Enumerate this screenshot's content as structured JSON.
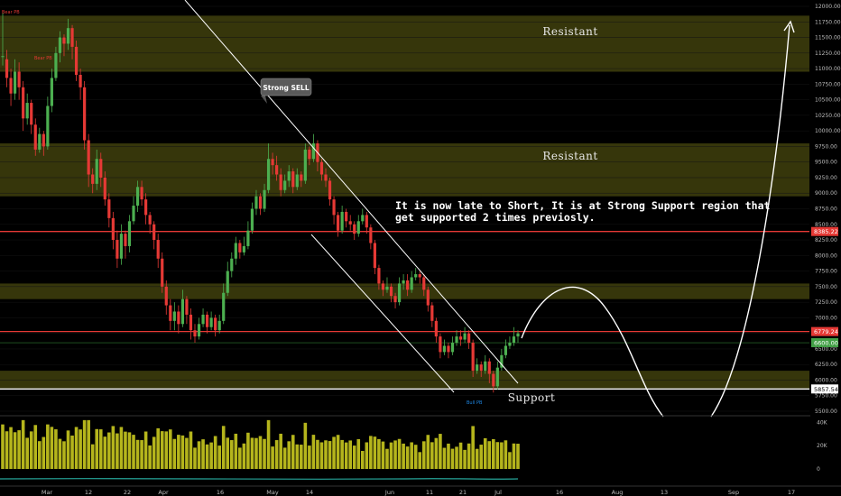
{
  "chart_data": {
    "type": "candlestick",
    "price_axis": {
      "ylim": [
        5500,
        12250
      ],
      "ticks": [
        12000,
        11750,
        11500,
        11250,
        11000,
        10750,
        10500,
        10250,
        10000,
        9750,
        9500,
        9250,
        9000,
        8750,
        8500,
        8250,
        8000,
        7750,
        7500,
        7250,
        7000,
        6750,
        6500,
        6250,
        6000,
        5750,
        5500
      ],
      "tick_labels": [
        "12000.00",
        "11750.00",
        "11500.00",
        "11250.00",
        "11000.00",
        "10750.00",
        "10500.00",
        "10250.00",
        "10000.00",
        "9750.00",
        "9500.00",
        "9250.00",
        "9000.00",
        "8750.00",
        "8500.00",
        "8250.00",
        "8000.00",
        "7750.00",
        "7500.00",
        "7250.00",
        "7000.00",
        "6750.00",
        "6500.00",
        "6250.00",
        "6000.00",
        "5750.00",
        "5500.00"
      ]
    },
    "price_labels": [
      {
        "value": 8385.22,
        "text": "8385.22",
        "color": "#e53935"
      },
      {
        "value": 6779.24,
        "text": "6779.24",
        "color": "#e53935"
      },
      {
        "value": 6600.0,
        "text": "6600.00",
        "color": "#43a047"
      },
      {
        "value": 5857.54,
        "text": "5857.54",
        "color": "#ffffff"
      }
    ],
    "horizontal_lines": [
      {
        "value": 8385.22,
        "color": "#e53935"
      },
      {
        "value": 6779.24,
        "color": "#e53935"
      },
      {
        "value": 5857.54,
        "color": "#ffffff"
      }
    ],
    "zones": [
      {
        "from": 10950,
        "to": 11850,
        "label": "Resistant"
      },
      {
        "from": 8950,
        "to": 9800,
        "label": "Resistant"
      },
      {
        "from": 7300,
        "to": 7550,
        "label": ""
      },
      {
        "from": 5870,
        "to": 6150,
        "label": "Support"
      }
    ],
    "x_ticks": [
      "Mar",
      "12",
      "22",
      "Apr",
      "16",
      "May",
      "14",
      "Jun",
      "11",
      "21",
      "Jul",
      "16",
      "Aug",
      "13",
      "Sep",
      "17"
    ],
    "volume_axis": {
      "ticks": [
        "40K",
        "20K",
        "0"
      ]
    },
    "annotation_text": [
      "It is now late to Short, It is at Strong Support region that",
      "get supported 2 times previosly."
    ],
    "callout": "Strong SELL",
    "pattern_labels": [
      {
        "text": "Bear PB",
        "color": "#e53935"
      },
      {
        "text": "Bear PB",
        "color": "#e53935"
      },
      {
        "text": "Bull PB",
        "color": "#1e88e5"
      }
    ],
    "candles": [
      [
        11200,
        11200,
        11900,
        11050
      ],
      [
        11150,
        10850,
        11300,
        10700
      ],
      [
        10850,
        10600,
        11000,
        10400
      ],
      [
        10600,
        10950,
        11150,
        10500
      ],
      [
        10950,
        10700,
        11100,
        10500
      ],
      [
        10700,
        10200,
        10800,
        10000
      ],
      [
        10200,
        10450,
        10600,
        10100
      ],
      [
        10450,
        10100,
        10500,
        9950
      ],
      [
        10100,
        9700,
        10200,
        9600
      ],
      [
        9700,
        9950,
        10050,
        9650
      ],
      [
        9950,
        9750,
        10000,
        9600
      ],
      [
        9750,
        10400,
        10550,
        9700
      ],
      [
        10400,
        10850,
        11000,
        10300
      ],
      [
        10850,
        11250,
        11350,
        10800
      ],
      [
        11250,
        11500,
        11600,
        11100
      ],
      [
        11500,
        11400,
        11550,
        11200
      ],
      [
        11400,
        11650,
        11800,
        11300
      ],
      [
        11650,
        11350,
        11700,
        11150
      ],
      [
        11350,
        10900,
        11450,
        10800
      ],
      [
        10900,
        10700,
        11000,
        10500
      ],
      [
        10700,
        9850,
        10800,
        9700
      ],
      [
        9850,
        9300,
        9950,
        9100
      ],
      [
        9300,
        9150,
        9400,
        9000
      ],
      [
        9150,
        9550,
        9700,
        9050
      ],
      [
        9550,
        9250,
        9650,
        9100
      ],
      [
        9250,
        8900,
        9350,
        8800
      ],
      [
        8900,
        8600,
        9000,
        8450
      ],
      [
        8600,
        8250,
        8700,
        8100
      ],
      [
        8250,
        7950,
        8400,
        7800
      ],
      [
        7950,
        8350,
        8500,
        7850
      ],
      [
        8350,
        8150,
        8400,
        7950
      ],
      [
        8150,
        8550,
        8650,
        8050
      ],
      [
        8550,
        8800,
        8950,
        8500
      ],
      [
        8800,
        9100,
        9200,
        8700
      ],
      [
        9100,
        8900,
        9200,
        8800
      ],
      [
        8900,
        8650,
        9000,
        8500
      ],
      [
        8650,
        8500,
        8700,
        8350
      ],
      [
        8500,
        8250,
        8550,
        8100
      ],
      [
        8250,
        7950,
        8350,
        7800
      ],
      [
        7950,
        7500,
        8050,
        7400
      ],
      [
        7500,
        7200,
        7600,
        7050
      ],
      [
        7200,
        6950,
        7300,
        6800
      ],
      [
        6950,
        7100,
        7250,
        6800
      ],
      [
        7100,
        6900,
        7200,
        6750
      ],
      [
        6900,
        7300,
        7450,
        6850
      ],
      [
        7300,
        7050,
        7350,
        6900
      ],
      [
        7050,
        6800,
        7150,
        6650
      ],
      [
        6800,
        6700,
        6900,
        6600
      ],
      [
        6700,
        6900,
        7000,
        6650
      ],
      [
        6900,
        7050,
        7150,
        6850
      ],
      [
        7050,
        6850,
        7100,
        6750
      ],
      [
        6850,
        7000,
        7100,
        6800
      ],
      [
        7000,
        6800,
        7050,
        6700
      ],
      [
        6800,
        6950,
        7050,
        6750
      ],
      [
        6950,
        7400,
        7550,
        6900
      ],
      [
        7400,
        7750,
        7900,
        7350
      ],
      [
        7750,
        7950,
        8050,
        7650
      ],
      [
        7950,
        8200,
        8300,
        7850
      ],
      [
        8200,
        8050,
        8250,
        7950
      ],
      [
        8050,
        8150,
        8300,
        8000
      ],
      [
        8150,
        8400,
        8550,
        8100
      ],
      [
        8400,
        8750,
        8850,
        8350
      ],
      [
        8750,
        8950,
        9050,
        8650
      ],
      [
        8950,
        8750,
        9000,
        8650
      ],
      [
        8750,
        9050,
        9150,
        8700
      ],
      [
        9050,
        9550,
        9800,
        9000
      ],
      [
        9550,
        9450,
        9650,
        9300
      ],
      [
        9450,
        9300,
        9600,
        9200
      ],
      [
        9300,
        9050,
        9400,
        8950
      ],
      [
        9050,
        9200,
        9300,
        9000
      ],
      [
        9200,
        9350,
        9450,
        9100
      ],
      [
        9350,
        9100,
        9400,
        9000
      ],
      [
        9100,
        9300,
        9400,
        9050
      ],
      [
        9300,
        9200,
        9350,
        9100
      ],
      [
        9200,
        9700,
        9800,
        9150
      ],
      [
        9700,
        9550,
        9750,
        9450
      ],
      [
        9550,
        9800,
        9950,
        9500
      ],
      [
        9800,
        9500,
        9850,
        9350
      ],
      [
        9500,
        9300,
        9550,
        9200
      ],
      [
        9300,
        9200,
        9400,
        9100
      ],
      [
        9200,
        8900,
        9250,
        8800
      ],
      [
        8900,
        8650,
        8950,
        8500
      ],
      [
        8650,
        8400,
        8700,
        8300
      ],
      [
        8400,
        8700,
        8800,
        8350
      ],
      [
        8700,
        8550,
        8750,
        8450
      ],
      [
        8550,
        8500,
        8650,
        8400
      ],
      [
        8500,
        8350,
        8550,
        8250
      ],
      [
        8350,
        8550,
        8650,
        8300
      ],
      [
        8550,
        8650,
        8750,
        8500
      ],
      [
        8650,
        8450,
        8700,
        8350
      ],
      [
        8450,
        8200,
        8500,
        8100
      ],
      [
        8200,
        7800,
        8250,
        7700
      ],
      [
        7800,
        7550,
        7850,
        7450
      ],
      [
        7550,
        7450,
        7600,
        7350
      ],
      [
        7450,
        7500,
        7650,
        7400
      ],
      [
        7500,
        7350,
        7550,
        7250
      ],
      [
        7350,
        7250,
        7400,
        7150
      ],
      [
        7250,
        7550,
        7650,
        7200
      ],
      [
        7550,
        7600,
        7700,
        7450
      ],
      [
        7600,
        7450,
        7700,
        7350
      ],
      [
        7450,
        7650,
        7750,
        7400
      ],
      [
        7650,
        7700,
        7800,
        7600
      ],
      [
        7700,
        7650,
        7750,
        7550
      ],
      [
        7650,
        7450,
        7700,
        7350
      ],
      [
        7450,
        7200,
        7500,
        7100
      ],
      [
        7200,
        6950,
        7250,
        6850
      ],
      [
        6950,
        6700,
        7000,
        6600
      ],
      [
        6700,
        6450,
        6750,
        6350
      ],
      [
        6450,
        6550,
        6650,
        6400
      ],
      [
        6550,
        6450,
        6600,
        6350
      ],
      [
        6450,
        6600,
        6700,
        6400
      ],
      [
        6600,
        6700,
        6800,
        6550
      ],
      [
        6700,
        6650,
        6800,
        6550
      ],
      [
        6650,
        6750,
        6850,
        6600
      ],
      [
        6750,
        6600,
        6800,
        6500
      ],
      [
        6600,
        6150,
        6650,
        6050
      ],
      [
        6150,
        6250,
        6350,
        6100
      ],
      [
        6250,
        6150,
        6300,
        6050
      ],
      [
        6150,
        6300,
        6400,
        6100
      ],
      [
        6300,
        6100,
        6350,
        5950
      ],
      [
        6100,
        5900,
        6150,
        5800
      ],
      [
        5900,
        6200,
        6300,
        5850
      ],
      [
        6200,
        6400,
        6500,
        6150
      ],
      [
        6400,
        6550,
        6650,
        6350
      ],
      [
        6550,
        6600,
        6700,
        6500
      ],
      [
        6600,
        6700,
        6850,
        6550
      ],
      [
        6700,
        6750,
        6800,
        6600
      ]
    ]
  }
}
